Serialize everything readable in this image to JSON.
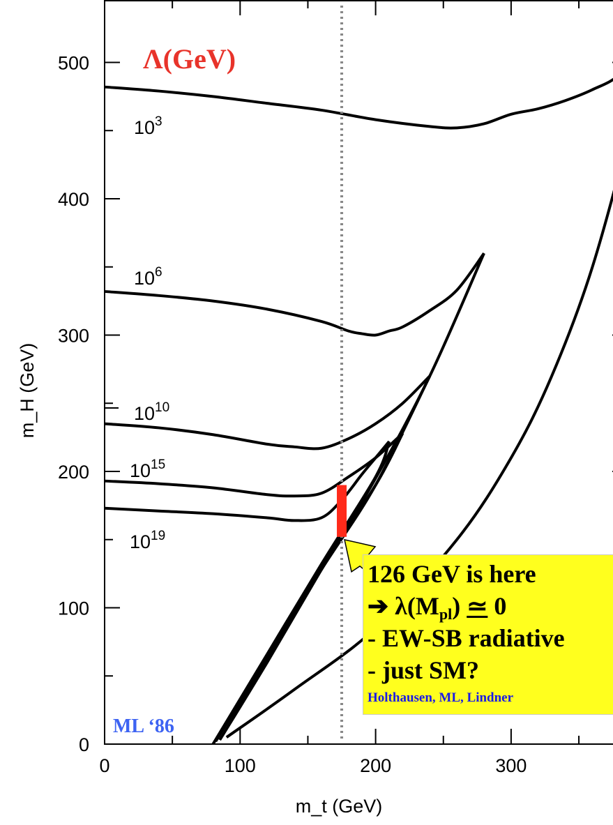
{
  "chart_data": {
    "type": "line",
    "title": "",
    "xlabel": "m_t  (GeV)",
    "ylabel": "m_H  (GeV)",
    "xlim": [
      0,
      400
    ],
    "ylim": [
      0,
      540
    ],
    "x_ticks": [
      0,
      100,
      200,
      300
    ],
    "y_ticks": [
      0,
      100,
      200,
      300,
      400,
      500
    ],
    "grid": false,
    "legend_title": "Λ(GeV)",
    "legend_title_color": "#e8332a",
    "credit": "ML ‘86",
    "credit_color": "#3d63f2",
    "curve_labels": [
      {
        "base": "10",
        "exp": "3"
      },
      {
        "base": "10",
        "exp": "6"
      },
      {
        "base": "10",
        "exp": "10"
      },
      {
        "base": "10",
        "exp": "15"
      },
      {
        "base": "10",
        "exp": "19"
      }
    ],
    "upper_curves": [
      {
        "name": "10^3",
        "x": [
          0,
          40,
          80,
          120,
          160,
          200,
          240,
          260,
          280,
          300,
          320,
          340,
          360,
          380,
          400
        ],
        "y": [
          482,
          479,
          475,
          470,
          465,
          458,
          453,
          452,
          455,
          462,
          466,
          472,
          480,
          491,
          515
        ]
      },
      {
        "name": "10^6",
        "x": [
          0,
          40,
          80,
          120,
          160,
          180,
          190,
          200,
          210,
          220,
          240,
          260,
          280
        ],
        "y": [
          332,
          329,
          325,
          319,
          310,
          303,
          301,
          300,
          303,
          306,
          318,
          333,
          360
        ]
      },
      {
        "name": "10^10",
        "x": [
          0,
          40,
          80,
          120,
          140,
          160,
          180,
          200,
          220,
          240
        ],
        "y": [
          235,
          232,
          227,
          220,
          218,
          217,
          224,
          235,
          250,
          270
        ]
      },
      {
        "name": "10^15",
        "x": [
          0,
          40,
          80,
          120,
          140,
          160,
          180,
          200,
          220
        ],
        "y": [
          193,
          191,
          188,
          183,
          182,
          184,
          196,
          210,
          228
        ]
      },
      {
        "name": "10^19",
        "x": [
          0,
          40,
          80,
          120,
          140,
          160,
          175,
          190,
          200,
          210
        ],
        "y": [
          173,
          171,
          169,
          166,
          164,
          166,
          179,
          198,
          210,
          222
        ]
      }
    ],
    "lower_curves": [
      {
        "name": "10^3 lower",
        "x": [
          90,
          140,
          200,
          260,
          300,
          330,
          360,
          390,
          400
        ],
        "y": [
          5,
          40,
          85,
          150,
          210,
          270,
          350,
          460,
          515
        ]
      },
      {
        "name": "10^6 lower",
        "x": [
          85,
          120,
          160,
          200,
          240,
          280
        ],
        "y": [
          3,
          60,
          128,
          195,
          270,
          360
        ]
      },
      {
        "name": "10^10 lower",
        "x": [
          82,
          120,
          160,
          200,
          240
        ],
        "y": [
          2,
          63,
          128,
          190,
          270
        ]
      },
      {
        "name": "10^15 lower",
        "x": [
          80,
          120,
          160,
          200,
          220
        ],
        "y": [
          0,
          65,
          130,
          190,
          228
        ]
      },
      {
        "name": "10^19 lower",
        "x": [
          80,
          120,
          160,
          200,
          210
        ],
        "y": [
          0,
          66,
          132,
          196,
          222
        ]
      }
    ],
    "reference_line": {
      "x": 175,
      "style": "dotted",
      "color": "#888888"
    },
    "highlight_band": {
      "x": 175,
      "y_range": [
        152,
        190
      ],
      "color": "#ff2a1a"
    },
    "annotation": {
      "lines": [
        "126 GeV is here",
        "➔ λ(M",
        "pl",
        ") ",
        "≃",
        " 0",
        "- EW-SB radiative",
        "- just SM?"
      ],
      "credit_line": "Holthausen, ML, Lindner",
      "credit_color": "#1a1ae6",
      "background": "#ffff1e"
    }
  }
}
